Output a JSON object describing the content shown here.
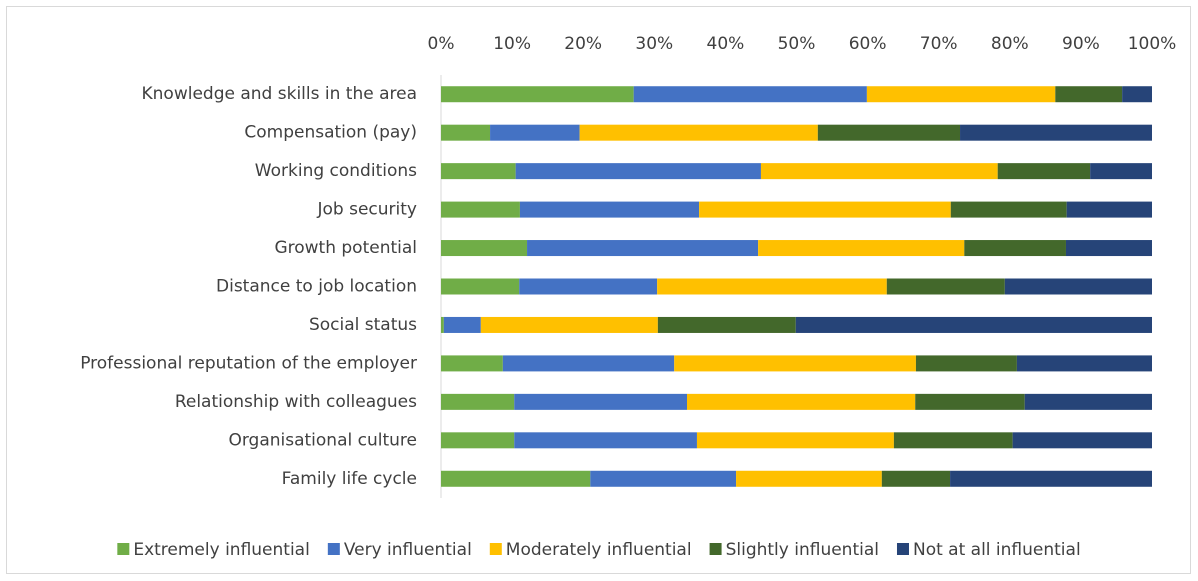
{
  "chart_data": {
    "type": "stacked_bar_horizontal",
    "categories": [
      "Knowledge and skills in the area",
      "Compensation (pay)",
      "Working conditions",
      "Job security",
      "Growth potential",
      "Distance to job location",
      "Social status",
      "Professional reputation of the employer",
      "Relationship with colleagues",
      "Organisational culture",
      "Family life cycle"
    ],
    "series": [
      {
        "name": "Extremely influential",
        "color": "#70ad47",
        "values": [
          27.1,
          6.9,
          10.5,
          11.1,
          12.1,
          11.0,
          0.4,
          8.7,
          10.3,
          10.3,
          21.0
        ]
      },
      {
        "name": "Very influential",
        "color": "#4472c4",
        "values": [
          32.8,
          12.6,
          34.5,
          25.2,
          32.5,
          19.4,
          5.2,
          24.1,
          24.3,
          25.7,
          20.5
        ]
      },
      {
        "name": "Moderately influential",
        "color": "#ffc000",
        "values": [
          26.5,
          33.5,
          33.3,
          35.4,
          29.0,
          32.3,
          24.9,
          34.0,
          32.1,
          27.7,
          20.5
        ]
      },
      {
        "name": "Slightly influential",
        "color": "#43682b",
        "values": [
          9.4,
          20.0,
          13.0,
          16.3,
          14.3,
          16.6,
          19.4,
          14.2,
          15.4,
          16.7,
          9.6
        ]
      },
      {
        "name": "Not at all influential",
        "color": "#264478",
        "values": [
          4.2,
          27.0,
          8.7,
          12.0,
          12.1,
          20.7,
          50.1,
          19.0,
          17.9,
          19.6,
          28.4
        ]
      }
    ],
    "xlim": [
      0,
      100
    ],
    "xticks": [
      {
        "value": 0,
        "label": "0%"
      },
      {
        "value": 10,
        "label": "10%"
      },
      {
        "value": 20,
        "label": "20%"
      },
      {
        "value": 30,
        "label": "30%"
      },
      {
        "value": 40,
        "label": "40%"
      },
      {
        "value": 50,
        "label": "50%"
      },
      {
        "value": 60,
        "label": "60%"
      },
      {
        "value": 70,
        "label": "70%"
      },
      {
        "value": 80,
        "label": "80%"
      },
      {
        "value": 90,
        "label": "90%"
      },
      {
        "value": 100,
        "label": "100%"
      }
    ],
    "legend": "bottom"
  }
}
